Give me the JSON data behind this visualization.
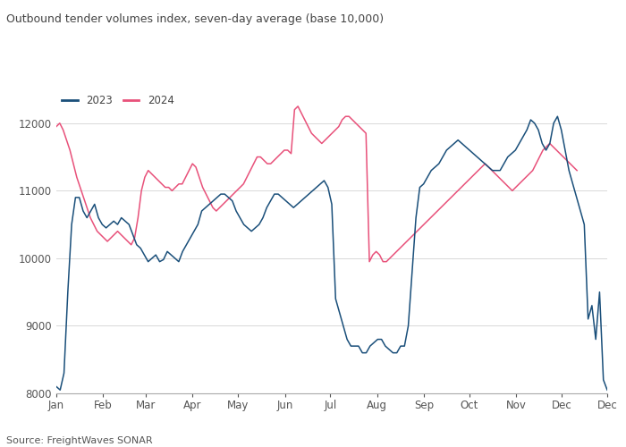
{
  "title": "Outbound tender volumes index, seven-day average (base 10,000)",
  "source": "Source: FreightWaves SONAR",
  "legend": [
    "2023",
    "2024"
  ],
  "colors": [
    "#1a4f7a",
    "#e8517a"
  ],
  "ylim": [
    8000,
    12500
  ],
  "yticks": [
    8000,
    9000,
    10000,
    11000,
    12000
  ],
  "months": [
    "Jan",
    "Feb",
    "Mar",
    "Apr",
    "May",
    "Jun",
    "Jul",
    "Aug",
    "Sep",
    "Oct",
    "Nov",
    "Dec",
    "Dec"
  ],
  "background": "#ffffff",
  "grid_color": "#d8d8d8",
  "series_2023": [
    8100,
    8050,
    8300,
    9500,
    10500,
    10900,
    10900,
    10700,
    10600,
    10700,
    10800,
    10600,
    10500,
    10450,
    10500,
    10550,
    10500,
    10600,
    10550,
    10500,
    10350,
    10200,
    10150,
    10050,
    9950,
    10000,
    10050,
    9950,
    9980,
    10100,
    10050,
    10000,
    9950,
    10100,
    10200,
    10300,
    10400,
    10500,
    10700,
    10750,
    10800,
    10850,
    10900,
    10950,
    10950,
    10900,
    10850,
    10700,
    10600,
    10500,
    10450,
    10400,
    10450,
    10500,
    10600,
    10750,
    10850,
    10950,
    10950,
    10900,
    10850,
    10800,
    10750,
    10800,
    10850,
    10900,
    10950,
    11000,
    11050,
    11100,
    11150,
    11050,
    10800,
    9400,
    9200,
    9000,
    8800,
    8700,
    8700,
    8700,
    8600,
    8600,
    8700,
    8750,
    8800,
    8800,
    8700,
    8650,
    8600,
    8600,
    8700,
    8700,
    9000,
    9800,
    10600,
    11050,
    11100,
    11200,
    11300,
    11350,
    11400,
    11500,
    11600,
    11650,
    11700,
    11750,
    11700,
    11650,
    11600,
    11550,
    11500,
    11450,
    11400,
    11350,
    11300,
    11300,
    11300,
    11400,
    11500,
    11550,
    11600,
    11700,
    11800,
    11900,
    12050,
    12000,
    11900,
    11700,
    11600,
    11700,
    12000,
    12100,
    11900,
    11600,
    11300,
    11100,
    10900,
    10700,
    10500,
    9100,
    9300,
    8800,
    9500,
    8200,
    8050
  ],
  "series_2024": [
    11950,
    12000,
    11900,
    11750,
    11600,
    11400,
    11200,
    11050,
    10900,
    10750,
    10600,
    10500,
    10400,
    10350,
    10300,
    10250,
    10300,
    10350,
    10400,
    10350,
    10300,
    10250,
    10200,
    10300,
    10600,
    11000,
    11200,
    11300,
    11250,
    11200,
    11150,
    11100,
    11050,
    11050,
    11000,
    11050,
    11100,
    11100,
    11200,
    11300,
    11400,
    11350,
    11200,
    11050,
    10950,
    10850,
    10750,
    10700,
    10750,
    10800,
    10850,
    10900,
    10950,
    11000,
    11050,
    11100,
    11200,
    11300,
    11400,
    11500,
    11500,
    11450,
    11400,
    11400,
    11450,
    11500,
    11550,
    11600,
    11600,
    11550,
    12200,
    12250,
    12150,
    12050,
    11950,
    11850,
    11800,
    11750,
    11700,
    11750,
    11800,
    11850,
    11900,
    11950,
    12050,
    12100,
    12100,
    12050,
    12000,
    11950,
    11900,
    11850,
    9950,
    10050,
    10100,
    10050,
    9950,
    9950,
    10000,
    10050,
    10100,
    10150,
    10200,
    10250,
    10300,
    10350,
    10400,
    10450,
    10500,
    10550,
    10600,
    10650,
    10700,
    10750,
    10800,
    10850,
    10900,
    10950,
    11000,
    11050,
    11100,
    11150,
    11200,
    11250,
    11300,
    11350,
    11400,
    11350,
    11300,
    11250,
    11200,
    11150,
    11100,
    11050,
    11000,
    11050,
    11100,
    11150,
    11200,
    11250,
    11300,
    11400,
    11500,
    11600,
    11650,
    11700,
    11650,
    11600,
    11550,
    11500,
    11450,
    11400,
    11350,
    11300
  ]
}
